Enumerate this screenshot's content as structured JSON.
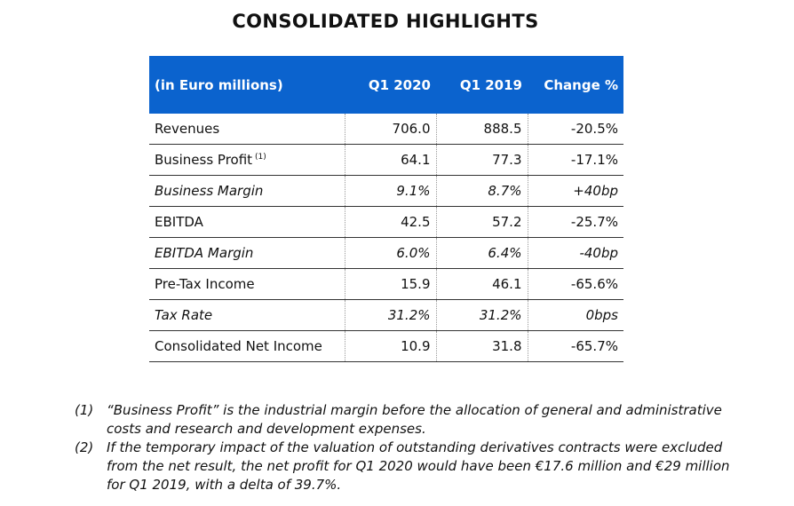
{
  "title": "CONSOLIDATED HIGHLIGHTS",
  "table": {
    "headers": [
      "(in Euro millions)",
      "Q1 2020",
      "Q1 2019",
      "Change %"
    ],
    "rows": [
      {
        "label": "Revenues",
        "sup": "",
        "q1_2020": "706.0",
        "q1_2019": "888.5",
        "change": "-20.5%",
        "italic": false
      },
      {
        "label": "Business Profit",
        "sup": "(1)",
        "q1_2020": "64.1",
        "q1_2019": "77.3",
        "change": "-17.1%",
        "italic": false
      },
      {
        "label": "Business Margin",
        "sup": "",
        "q1_2020": "9.1%",
        "q1_2019": "8.7%",
        "change": "+40bp",
        "italic": true
      },
      {
        "label": "EBITDA",
        "sup": "",
        "q1_2020": "42.5",
        "q1_2019": "57.2",
        "change": "-25.7%",
        "italic": false
      },
      {
        "label": "EBITDA Margin",
        "sup": "",
        "q1_2020": "6.0%",
        "q1_2019": "6.4%",
        "change": "-40bp",
        "italic": true
      },
      {
        "label": "Pre-Tax Income",
        "sup": "",
        "q1_2020": "15.9",
        "q1_2019": "46.1",
        "change": "-65.6%",
        "italic": false
      },
      {
        "label": "Tax Rate",
        "sup": "",
        "q1_2020": "31.2%",
        "q1_2019": "31.2%",
        "change": "0bps",
        "italic": true
      },
      {
        "label": "Consolidated Net Income",
        "sup": "",
        "q1_2020": "10.9",
        "q1_2019": "31.8",
        "change": "-65.7%",
        "italic": false
      }
    ]
  },
  "notes": [
    {
      "num": "(1)",
      "text": "“Business Profit” is the industrial margin before the allocation of general and administrative costs and research and development expenses."
    },
    {
      "num": "(2)",
      "text": "If the temporary impact of the valuation of outstanding derivatives contracts were excluded from the net result, the net profit for Q1 2020 would have been €17.6 million and €29 million for Q1 2019, with a delta of 39.7%."
    }
  ],
  "colors": {
    "header_bg": "#0b63ce",
    "header_text": "#ffffff"
  }
}
